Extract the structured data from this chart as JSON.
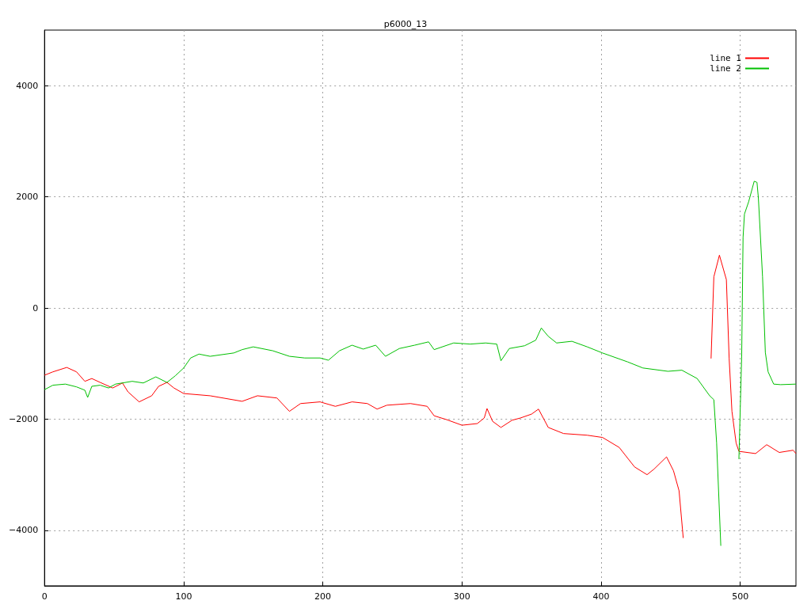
{
  "chart_data": {
    "type": "line",
    "title": "p6000_13",
    "xlim": [
      0,
      540
    ],
    "xticks": [
      0,
      100,
      200,
      300,
      400,
      500
    ],
    "ylim": [
      -5000,
      5000
    ],
    "yticks": [
      -4000,
      -2000,
      0,
      2000,
      4000
    ],
    "grid": true,
    "legend": "top right",
    "marker": "none",
    "line_style": "solid",
    "series": [
      {
        "name": "line 1",
        "color": "#ff0000",
        "x": [
          0,
          6,
          16,
          23,
          29,
          34,
          40,
          49,
          56,
          60,
          68,
          77,
          82,
          88,
          93,
          100,
          119,
          142,
          153,
          167,
          176,
          184,
          198,
          209,
          221,
          232,
          239,
          246,
          263,
          275,
          280,
          289,
          300,
          311,
          316,
          318,
          322,
          328,
          336,
          342,
          350,
          355,
          362,
          373,
          390,
          401,
          413,
          424,
          433,
          438,
          447,
          452,
          456,
          459,
          462,
          463,
          475,
          476,
          479,
          481,
          485,
          490,
          492,
          494,
          497,
          499,
          511,
          519,
          528,
          538,
          540
        ],
        "values": [
          -1210,
          -1150,
          -1070,
          -1150,
          -1320,
          -1270,
          -1340,
          -1440,
          -1350,
          -1510,
          -1690,
          -1580,
          -1410,
          -1340,
          -1440,
          -1540,
          -1580,
          -1680,
          -1580,
          -1620,
          -1860,
          -1720,
          -1690,
          -1770,
          -1690,
          -1720,
          -1820,
          -1750,
          -1720,
          -1770,
          -1940,
          -2010,
          -2110,
          -2080,
          -1980,
          -1810,
          -2040,
          -2150,
          -2020,
          -1980,
          -1910,
          -1820,
          -2150,
          -2260,
          -2290,
          -2330,
          -2510,
          -2860,
          -3000,
          -2900,
          -2680,
          -2930,
          -3290,
          -4140,
          null,
          null,
          null,
          null,
          -910,
          560,
          950,
          510,
          -910,
          -1860,
          -2430,
          -2580,
          -2620,
          -2460,
          -2600,
          -2560,
          -2620
        ]
      },
      {
        "name": "line 2",
        "color": "#00c000",
        "x": [
          0,
          6,
          15,
          23,
          29,
          31,
          34,
          40,
          46,
          51,
          63,
          71,
          80,
          88,
          94,
          100,
          105,
          111,
          119,
          136,
          142,
          150,
          164,
          176,
          187,
          198,
          204,
          212,
          221,
          229,
          238,
          245,
          255,
          266,
          276,
          280,
          294,
          306,
          317,
          325,
          328,
          334,
          345,
          353,
          357,
          362,
          368,
          379,
          390,
          401,
          419,
          430,
          448,
          458,
          469,
          478,
          481,
          483,
          486,
          487,
          488,
          495,
          496,
          499,
          501,
          502,
          503,
          506,
          510,
          512,
          513,
          516,
          518,
          520,
          524,
          529,
          540
        ],
        "values": [
          -1470,
          -1390,
          -1370,
          -1420,
          -1480,
          -1610,
          -1410,
          -1390,
          -1440,
          -1370,
          -1320,
          -1350,
          -1240,
          -1340,
          -1220,
          -1080,
          -900,
          -830,
          -870,
          -810,
          -750,
          -700,
          -770,
          -870,
          -900,
          -900,
          -940,
          -770,
          -670,
          -740,
          -670,
          -870,
          -730,
          -670,
          -610,
          -750,
          -630,
          -650,
          -630,
          -650,
          -950,
          -730,
          -680,
          -580,
          -360,
          -510,
          -630,
          -600,
          -700,
          -810,
          -970,
          -1080,
          -1140,
          -1120,
          -1270,
          -1580,
          -1650,
          -2430,
          -4280,
          null,
          null,
          null,
          null,
          -2720,
          -870,
          1270,
          1690,
          1910,
          2280,
          2260,
          1980,
          560,
          -800,
          -1150,
          -1370,
          -1380,
          -1370
        ]
      }
    ]
  }
}
